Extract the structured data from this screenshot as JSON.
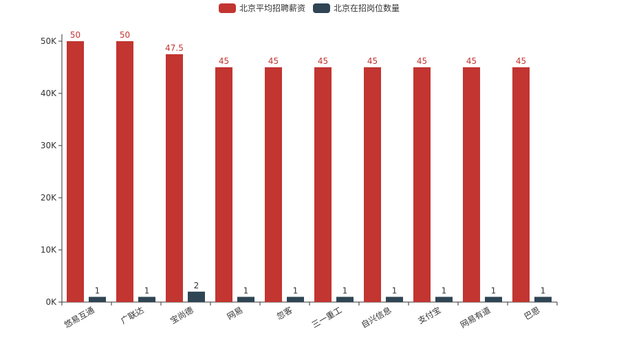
{
  "chart_data": {
    "type": "bar",
    "categories": [
      "悠易互通",
      "广联达",
      "宝尚德",
      "网易",
      "忽客",
      "三一重工",
      "自兴信息",
      "支付宝",
      "网易有道",
      "巴恩"
    ],
    "series": [
      {
        "name": "北京平均招聘薪资",
        "color": "#c23531",
        "values": [
          50000,
          50000,
          47500,
          45000,
          45000,
          45000,
          45000,
          45000,
          45000,
          45000
        ],
        "labels": [
          "50",
          "50",
          "47.5",
          "45",
          "45",
          "45",
          "45",
          "45",
          "45",
          "45"
        ]
      },
      {
        "name": "北京在招岗位数量",
        "color": "#2f4554",
        "values": [
          1,
          1,
          2,
          1,
          1,
          1,
          1,
          1,
          1,
          1
        ],
        "labels": [
          "1",
          "1",
          "2",
          "1",
          "1",
          "1",
          "1",
          "1",
          "1",
          "1"
        ],
        "display_scale": 1000
      }
    ],
    "y_ticks": [
      {
        "value": 0,
        "label": "0K"
      },
      {
        "value": 10000,
        "label": "10K"
      },
      {
        "value": 20000,
        "label": "20K"
      },
      {
        "value": 30000,
        "label": "30K"
      },
      {
        "value": 40000,
        "label": "40K"
      },
      {
        "value": 50000,
        "label": "50K"
      }
    ],
    "ylim": [
      0,
      50000
    ],
    "grid": false,
    "legend_position": "top-center"
  }
}
